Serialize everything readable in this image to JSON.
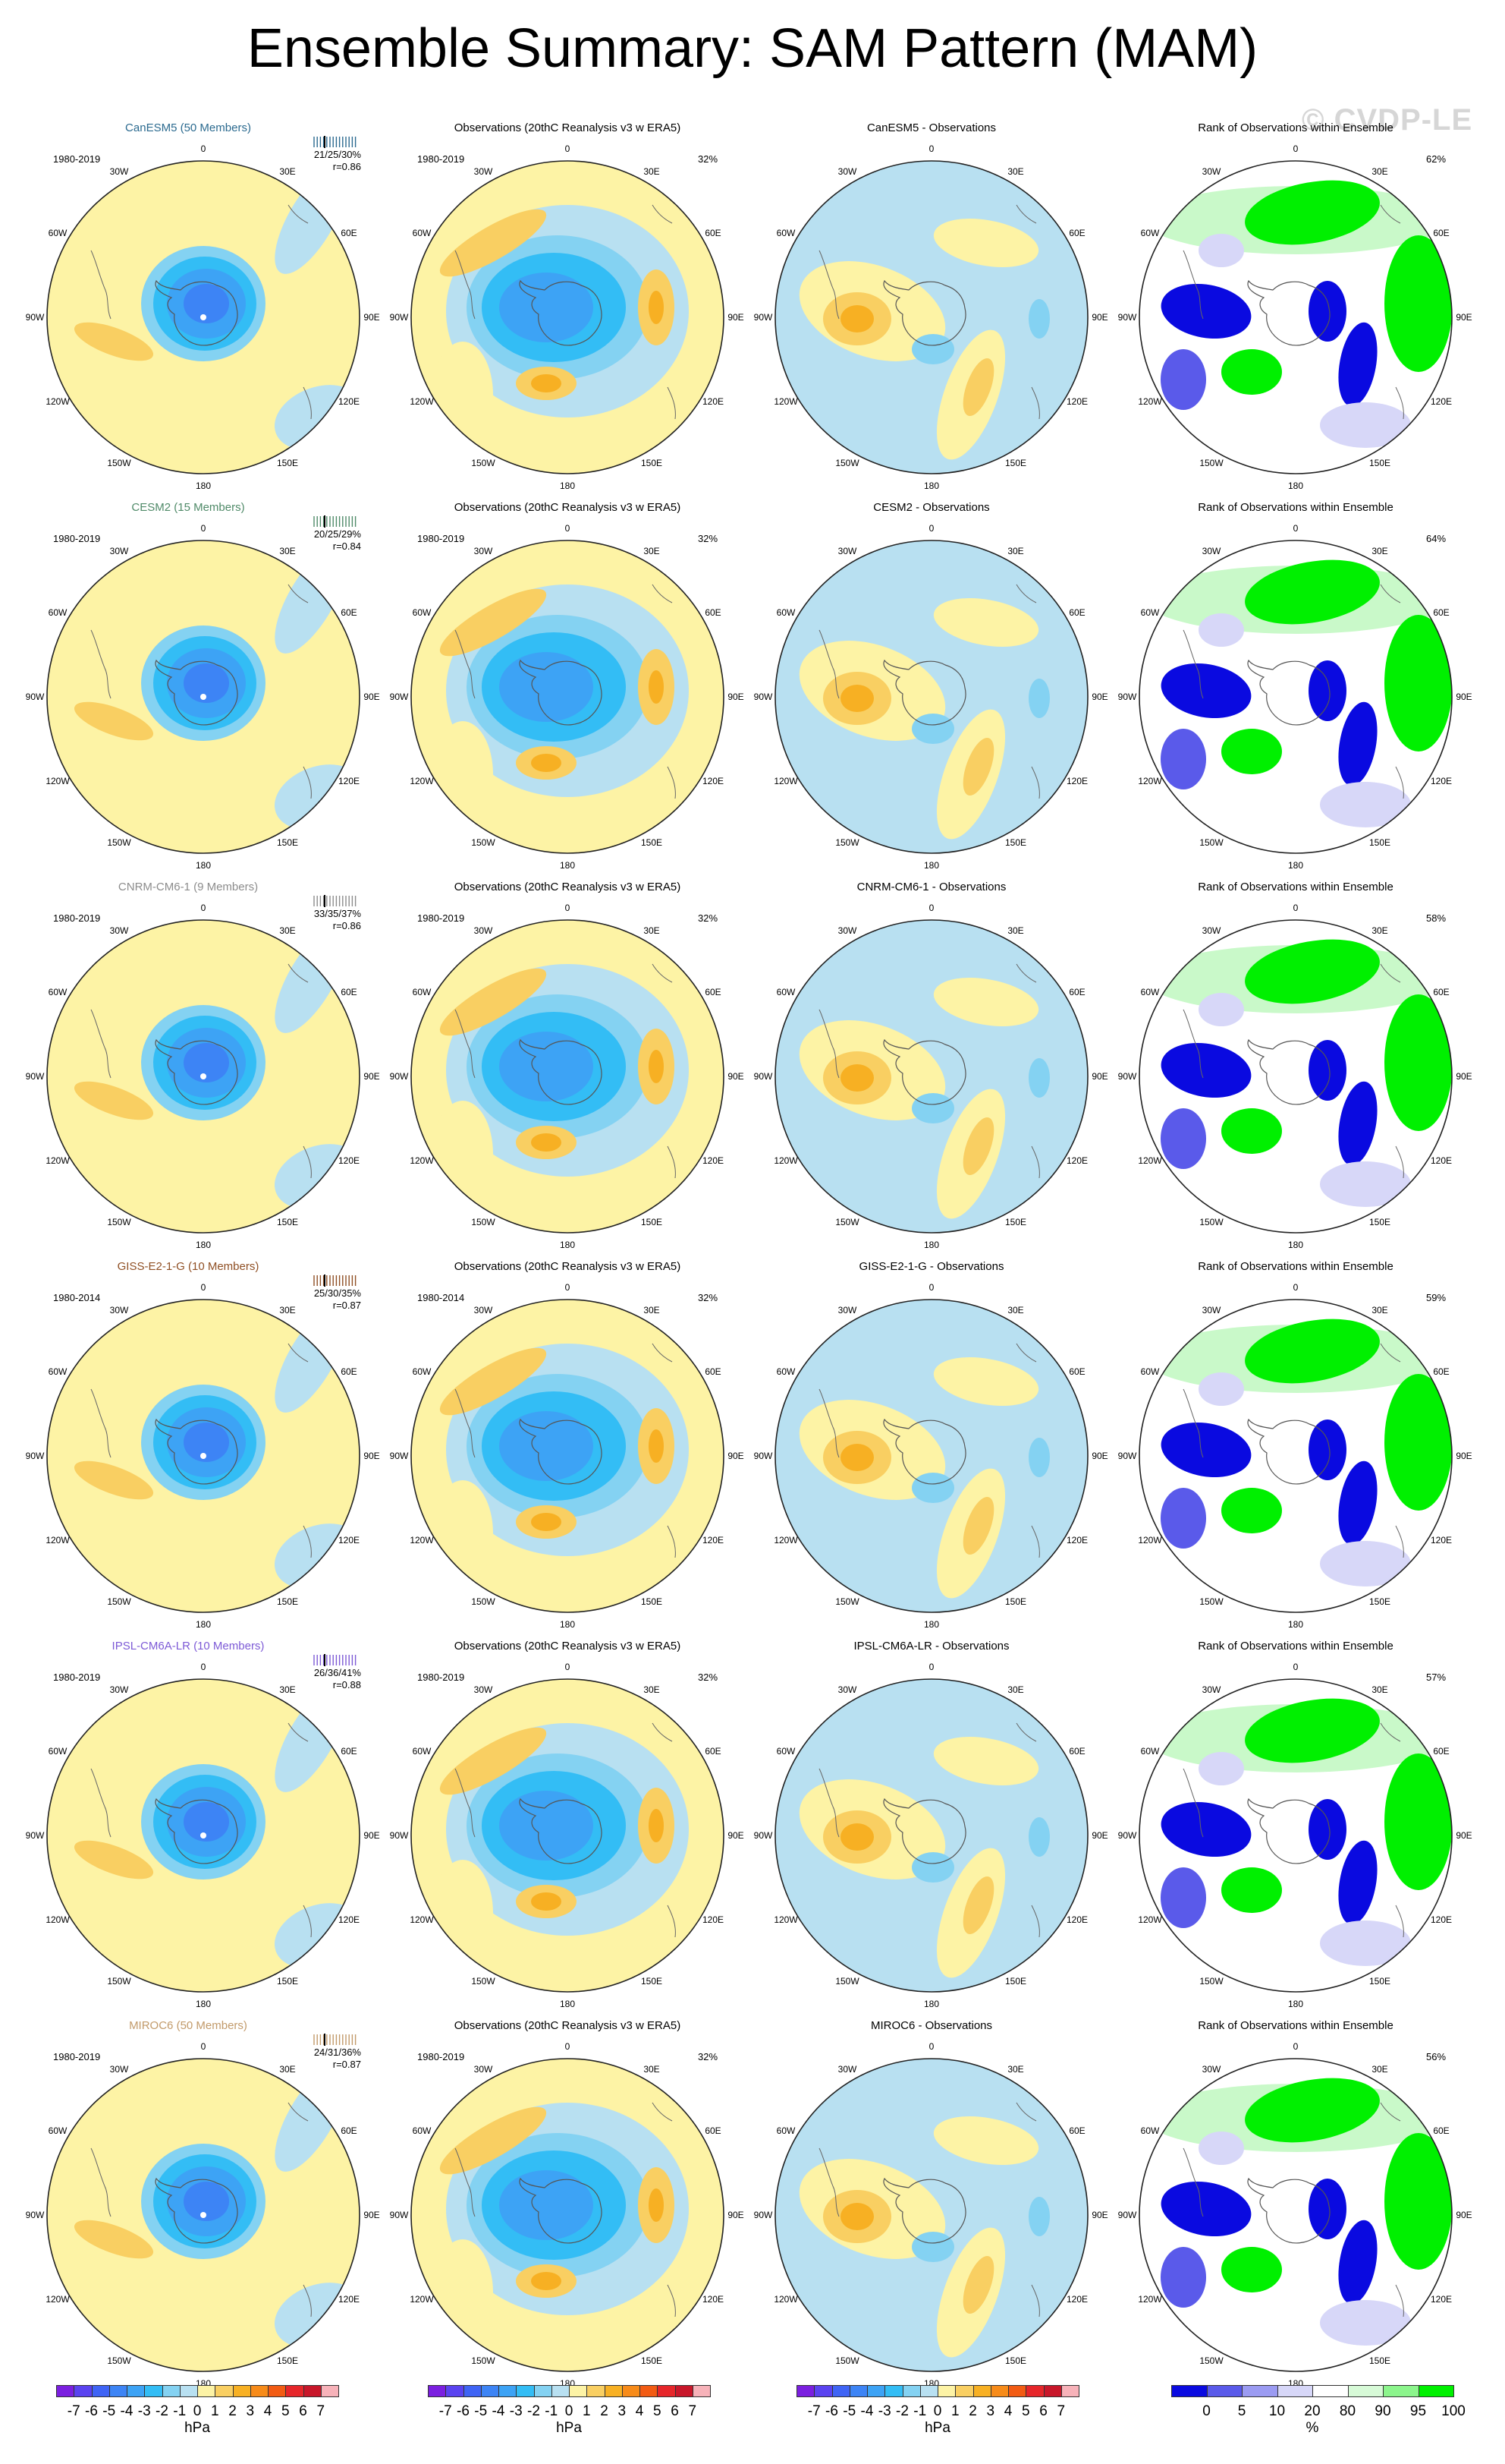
{
  "title": "Ensemble Summary: SAM Pattern (MAM)",
  "watermark": "© CVDP-LE",
  "columns": {
    "obs_title": "Observations (20thC Reanalysis v3 w ERA5)",
    "rank_title": "Rank of Observations within Ensemble"
  },
  "longitude_labels": [
    "0",
    "30E",
    "60E",
    "90E",
    "120E",
    "150E",
    "180",
    "150W",
    "120W",
    "90W",
    "60W",
    "30W"
  ],
  "rows": [
    {
      "model_title": "CanESM5 (50 Members)",
      "model_color": "#2b6a8f",
      "period": "1980-2019",
      "stats": "21/25/30%",
      "r": "r=0.86",
      "obs_pct": "32%",
      "diff_title": "CanESM5 - Observations",
      "rank_pct": "62%"
    },
    {
      "model_title": "CESM2 (15 Members)",
      "model_color": "#4f8a68",
      "period": "1980-2019",
      "stats": "20/25/29%",
      "r": "r=0.84",
      "obs_pct": "32%",
      "diff_title": "CESM2 - Observations",
      "rank_pct": "64%"
    },
    {
      "model_title": "CNRM-CM6-1 (9 Members)",
      "model_color": "#8c8c8c",
      "period": "1980-2019",
      "stats": "33/35/37%",
      "r": "r=0.86",
      "obs_pct": "32%",
      "diff_title": "CNRM-CM6-1 - Observations",
      "rank_pct": "58%"
    },
    {
      "model_title": "GISS-E2-1-G (10 Members)",
      "model_color": "#8f4f24",
      "period": "1980-2014",
      "stats": "25/30/35%",
      "r": "r=0.87",
      "obs_pct": "32%",
      "diff_title": "GISS-E2-1-G - Observations",
      "rank_pct": "59%"
    },
    {
      "model_title": "IPSL-CM6A-LR (10 Members)",
      "model_color": "#7d5ad6",
      "period": "1980-2019",
      "stats": "26/36/41%",
      "r": "r=0.88",
      "obs_pct": "32%",
      "diff_title": "IPSL-CM6A-LR - Observations",
      "rank_pct": "57%"
    },
    {
      "model_title": "MIROC6 (50 Members)",
      "model_color": "#c29a6a",
      "period": "1980-2019",
      "stats": "24/31/36%",
      "r": "r=0.87",
      "obs_pct": "32%",
      "diff_title": "MIROC6 - Observations",
      "rank_pct": "56%"
    }
  ],
  "colorbars": {
    "hpa": {
      "ticks": [
        "-7",
        "-6",
        "-5",
        "-4",
        "-3",
        "-2",
        "-1",
        "0",
        "1",
        "2",
        "3",
        "4",
        "5",
        "6",
        "7"
      ],
      "unit": "hPa",
      "colors": [
        "#7b1fe0",
        "#5a43f0",
        "#3f64f5",
        "#3d84f5",
        "#3da3f5",
        "#33bdf5",
        "#84d2f2",
        "#b8e0f1",
        "#fdf3a5",
        "#f9cf62",
        "#f7b023",
        "#f78b19",
        "#f25b13",
        "#e6262a",
        "#c8172a",
        "#f7b2b9"
      ]
    },
    "rank": {
      "ticks": [
        "0",
        "5",
        "10",
        "20",
        "80",
        "90",
        "95",
        "100"
      ],
      "unit": "%",
      "colors": [
        "#0a0ae0",
        "#5a5aea",
        "#9b9bf2",
        "#d7d7f8",
        "#ffffff",
        "#d7fad7",
        "#8cf58c",
        "#00f000"
      ]
    }
  }
}
